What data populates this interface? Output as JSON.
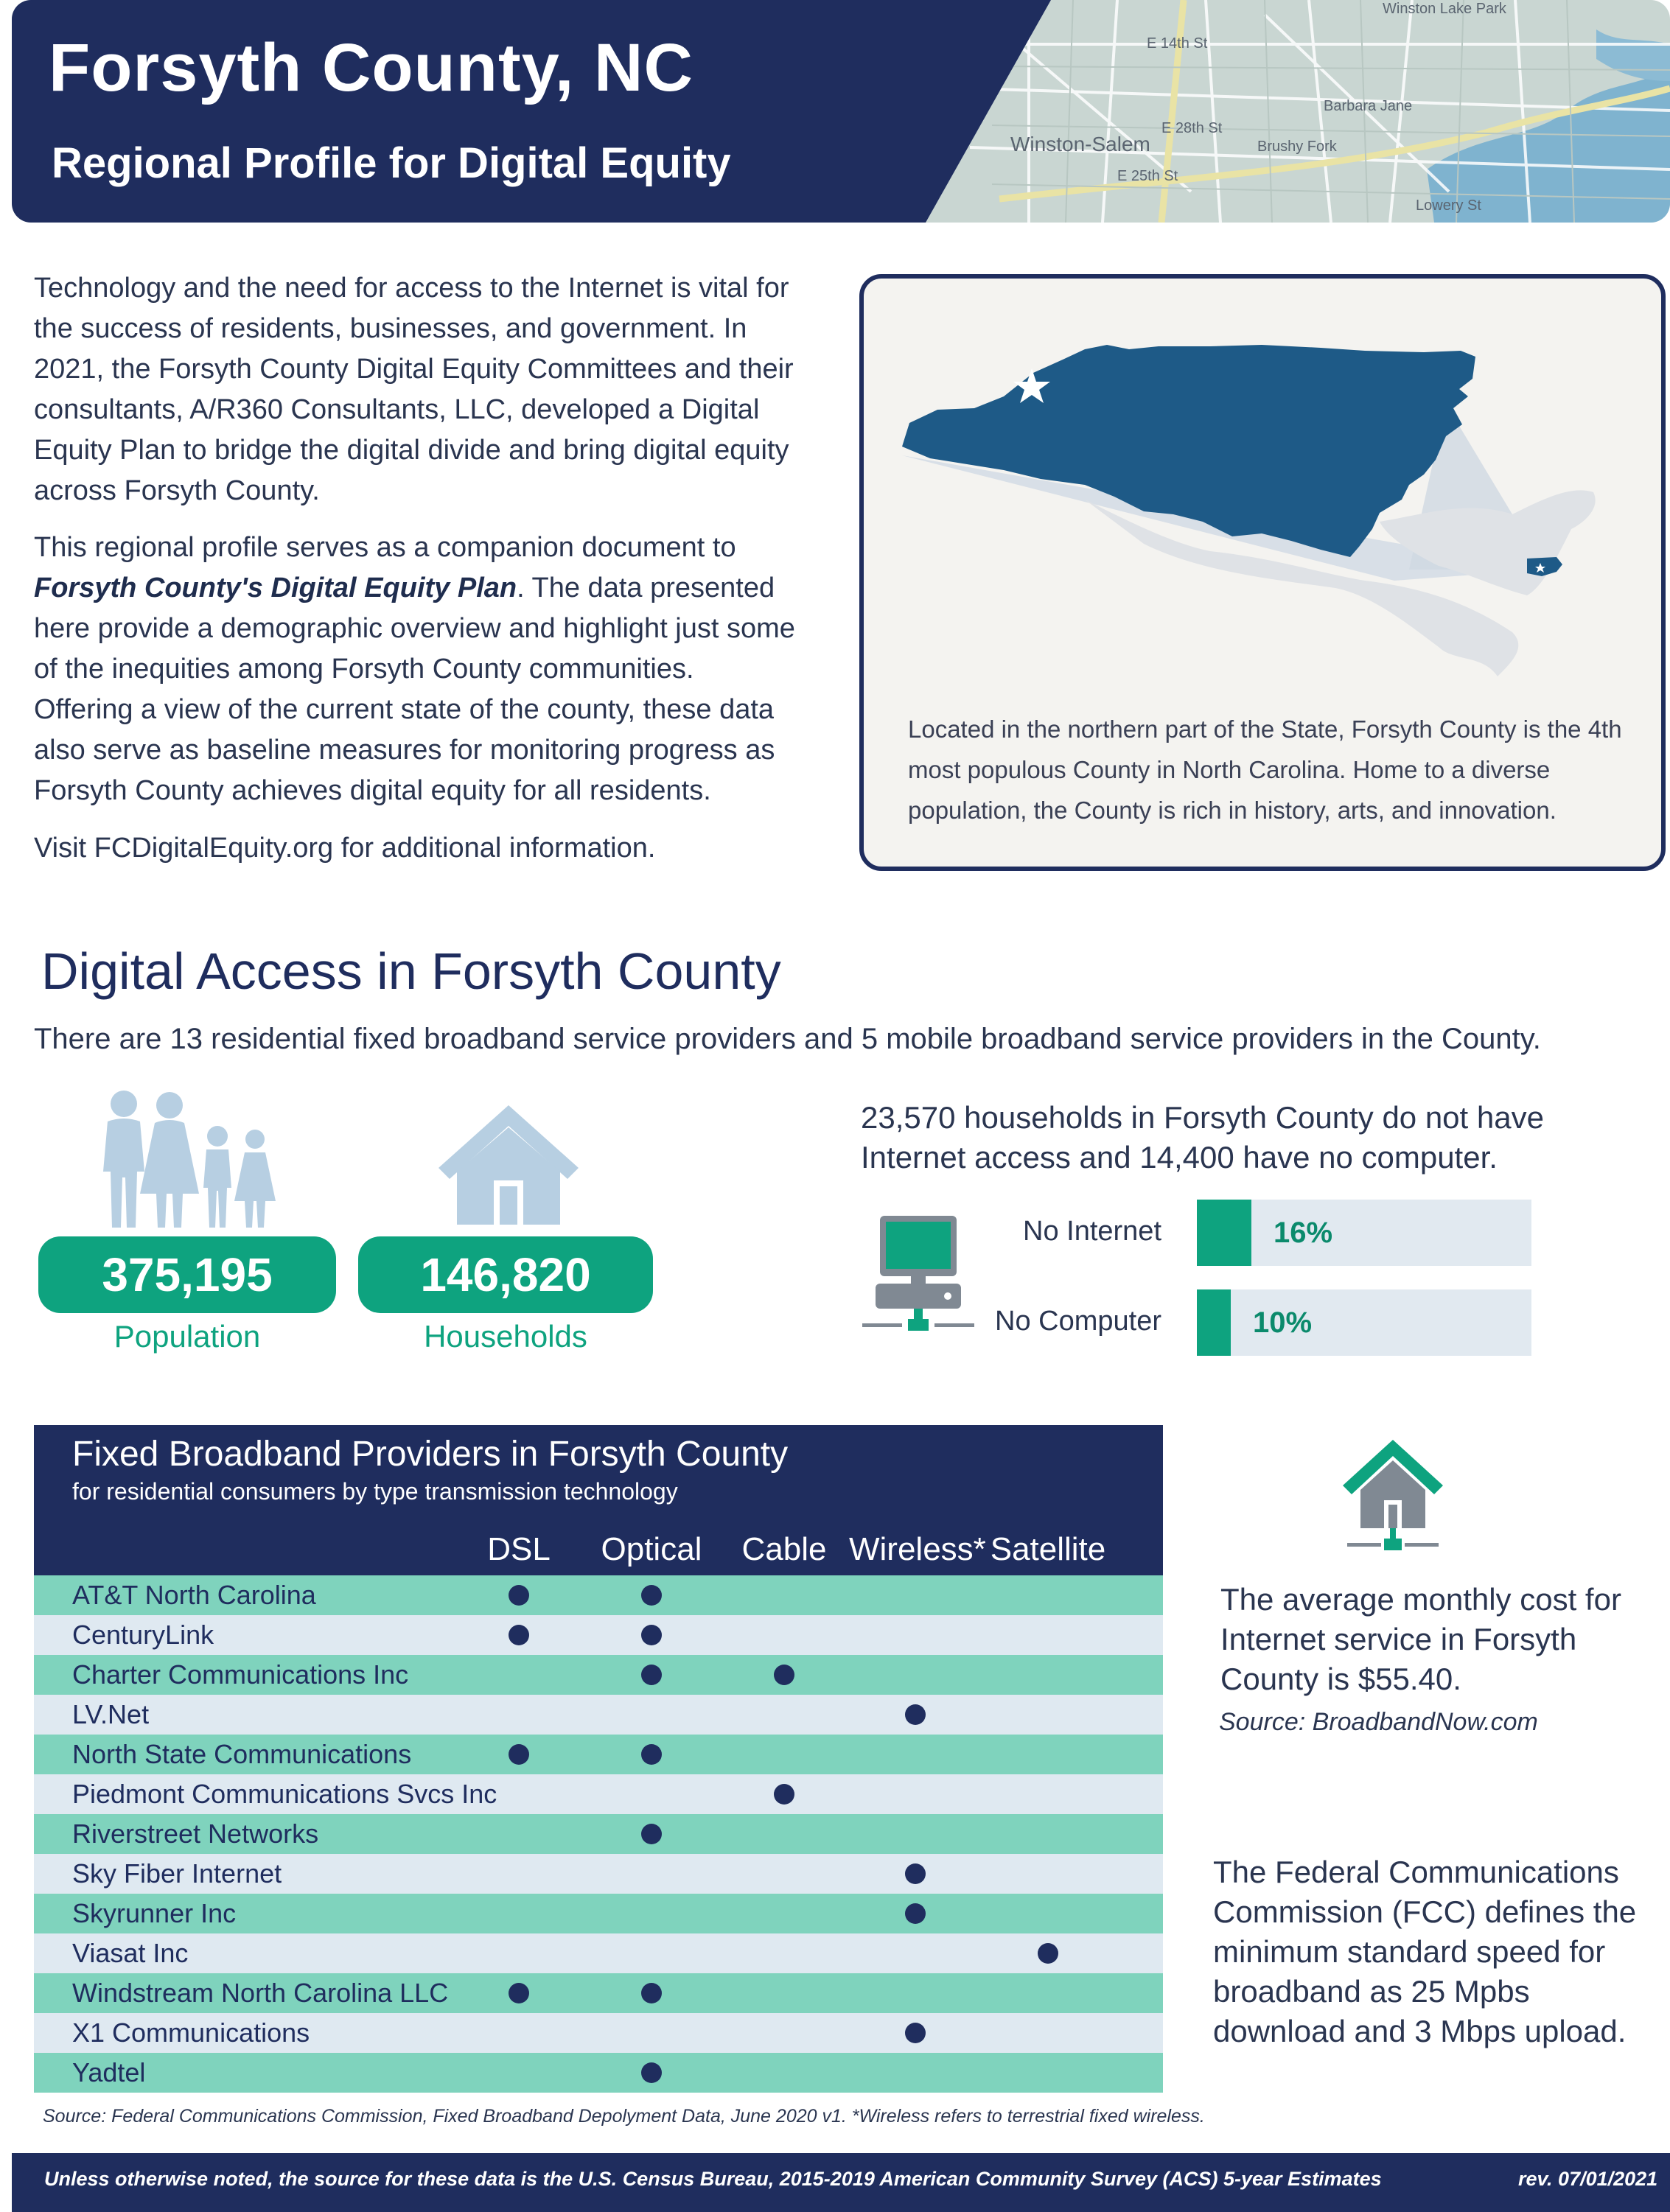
{
  "header": {
    "title": "Forsyth County, NC",
    "subtitle": "Regional Profile for Digital Equity"
  },
  "intro": {
    "p1": "Technology and the need for access to the Internet is vital for the success of residents, businesses, and government. In 2021, the Forsyth County Digital Equity Committees and their consultants, A/R360 Consultants, LLC, developed a Digital Equity Plan to bridge the digital divide and bring digital equity across Forsyth County.",
    "p2_before": "This regional profile serves as a companion document to ",
    "p2_em": "Forsyth County's Digital Equity Plan",
    "p2_after": ". The data presented here provide a demographic overview and highlight just some of the inequities among Forsyth County communities. Offering a view of the current state of the county, these data also serve as baseline measures for monitoring progress as Forsyth County achieves digital equity for all residents.",
    "p3": "Visit FCDigitalEquity.org for additional information."
  },
  "map": {
    "caption": "Located in the northern part of the State, Forsyth County is the 4th most populous County in North Carolina. Home to a diverse population, the County is rich in history, arts, and innovation.",
    "labels": [
      "Winston-Salem",
      "Winston Lake Park",
      "E 14th St",
      "E 25th St",
      "Barbara Jane",
      "Brushy Fork",
      "E 28th St",
      "Lowery St"
    ]
  },
  "digital_access": {
    "title": "Digital Access in Forsyth County",
    "subtitle": "There are 13 residential fixed broadband service providers and 5 mobile broadband service providers in the County.",
    "population_value": "375,195",
    "population_label": "Population",
    "households_value": "146,820",
    "households_label": "Households",
    "households_text": "23,570 households in Forsyth County do not have Internet access and 14,400 have no computer.",
    "bars": [
      {
        "label": "No Internet",
        "pct_text": "16%",
        "value": 0.16
      },
      {
        "label": "No Computer",
        "pct_text": "10%",
        "value": 0.1
      }
    ]
  },
  "providers_table": {
    "title": "Fixed Broadband Providers in Forsyth County",
    "subtitle": "for residential consumers by type transmission technology",
    "columns": [
      "DSL",
      "Optical",
      "Cable",
      "Wireless*",
      "Satellite"
    ],
    "rows": [
      {
        "name": "AT&T North Carolina",
        "tech": [
          true,
          true,
          false,
          false,
          false
        ]
      },
      {
        "name": "CenturyLink",
        "tech": [
          true,
          true,
          false,
          false,
          false
        ]
      },
      {
        "name": "Charter Communications Inc",
        "tech": [
          false,
          true,
          true,
          false,
          false
        ]
      },
      {
        "name": "LV.Net",
        "tech": [
          false,
          false,
          false,
          true,
          false
        ]
      },
      {
        "name": "North State Communications",
        "tech": [
          true,
          true,
          false,
          false,
          false
        ]
      },
      {
        "name": "Piedmont Communications Svcs Inc",
        "tech": [
          false,
          false,
          true,
          false,
          false
        ]
      },
      {
        "name": "Riverstreet Networks",
        "tech": [
          false,
          true,
          false,
          false,
          false
        ]
      },
      {
        "name": "Sky Fiber Internet",
        "tech": [
          false,
          false,
          false,
          true,
          false
        ]
      },
      {
        "name": "Skyrunner Inc",
        "tech": [
          false,
          false,
          false,
          true,
          false
        ]
      },
      {
        "name": "Viasat Inc",
        "tech": [
          false,
          false,
          false,
          false,
          true
        ]
      },
      {
        "name": "Windstream North Carolina LLC",
        "tech": [
          true,
          true,
          false,
          false,
          false
        ]
      },
      {
        "name": "X1 Communications",
        "tech": [
          false,
          false,
          false,
          true,
          false
        ]
      },
      {
        "name": "Yadtel",
        "tech": [
          false,
          true,
          false,
          false,
          false
        ]
      }
    ],
    "source": "Source: Federal Communications Commission, Fixed Broadband Depolyment Data, June 2020 v1.   *Wireless refers to terrestrial fixed wireless."
  },
  "cost": {
    "text": "The average monthly cost for Internet service in Forsyth County is $55.40.",
    "source": "Source: BroadbandNow.com"
  },
  "fcc": {
    "text": "The Federal Communications Commission (FCC) defines the minimum standard speed for broadband as 25 Mpbs download and 3 Mbps upload."
  },
  "footer": {
    "note": "Unless otherwise noted, the source for these data is the  U.S. Census Bureau, 2015-2019 American Community Survey (ACS) 5-year Estimates",
    "rev": "rev. 07/01/2021"
  },
  "colors": {
    "navy": "#1f2d5e",
    "teal": "#0ea37f",
    "row_teal": "#7fd3bd",
    "row_gray": "#dfe9f1",
    "state_blue": "#1e5a87"
  }
}
